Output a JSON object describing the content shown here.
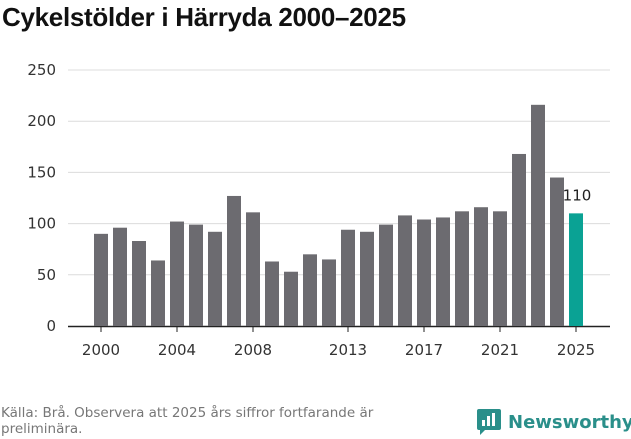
{
  "chart_data": {
    "type": "bar",
    "title": "Cykelstölder i Härryda 2000–2025",
    "xlabel": "",
    "ylabel": "",
    "categories": [
      2000,
      2001,
      2002,
      2003,
      2004,
      2005,
      2006,
      2007,
      2008,
      2009,
      2010,
      2011,
      2012,
      2013,
      2014,
      2015,
      2016,
      2017,
      2018,
      2019,
      2020,
      2021,
      2022,
      2023,
      2024,
      2025
    ],
    "values": [
      90,
      96,
      83,
      64,
      102,
      99,
      92,
      127,
      111,
      63,
      53,
      70,
      65,
      94,
      92,
      99,
      108,
      104,
      106,
      112,
      116,
      112,
      168,
      216,
      145,
      110
    ],
    "highlight_index": 25,
    "highlight_label": "110",
    "x_ticks": [
      2000,
      2004,
      2008,
      2013,
      2017,
      2021,
      2025
    ],
    "y_ticks": [
      0,
      50,
      100,
      150,
      200,
      250
    ],
    "ylim": [
      0,
      250
    ],
    "grid": true
  },
  "colors": {
    "bar": "#6c6b70",
    "highlight": "#0aa294",
    "grid": "#dcdcdc",
    "logo_bg": "#2a8f8a",
    "logo_text": "#2a8f8a"
  },
  "source": "Källa: Brå. Observera att 2025 års siffror fortfarande är preliminära.",
  "logo": {
    "text": "Newsworthy",
    "icon": "bar-chart-icon"
  }
}
